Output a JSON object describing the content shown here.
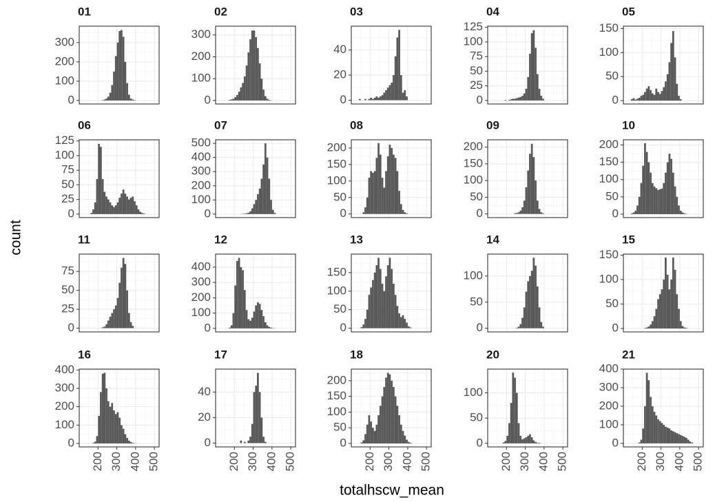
{
  "xlabel": "totalhscw_mean",
  "ylabel": "count",
  "xlim": [
    100,
    525
  ],
  "xticks": [
    200,
    300,
    400,
    500
  ],
  "chart_data": [
    {
      "type": "histogram",
      "title": "01",
      "ylim": [
        -18,
        385
      ],
      "yticks": [
        0,
        100,
        200,
        300
      ],
      "bins": [
        220,
        230,
        240,
        250,
        260,
        270,
        280,
        290,
        300,
        310,
        320,
        330,
        340,
        350,
        360,
        370,
        380,
        390,
        400
      ],
      "counts": [
        2,
        5,
        10,
        20,
        40,
        80,
        150,
        230,
        300,
        360,
        365,
        330,
        200,
        90,
        30,
        10,
        5,
        2
      ]
    },
    {
      "type": "histogram",
      "title": "02",
      "ylim": [
        -16,
        340
      ],
      "yticks": [
        0,
        100,
        200,
        300
      ],
      "bins": [
        170,
        180,
        190,
        200,
        210,
        220,
        230,
        240,
        250,
        260,
        270,
        280,
        290,
        300,
        310,
        320,
        330,
        340,
        350,
        360,
        370,
        380,
        390,
        400
      ],
      "counts": [
        3,
        5,
        8,
        15,
        25,
        40,
        60,
        80,
        110,
        160,
        220,
        280,
        320,
        320,
        290,
        240,
        170,
        100,
        50,
        20,
        8,
        3,
        1
      ]
    },
    {
      "type": "histogram",
      "title": "03",
      "ylim": [
        -3,
        59
      ],
      "yticks": [
        0,
        20,
        40
      ],
      "bins": [
        140,
        150,
        160,
        170,
        180,
        190,
        200,
        210,
        220,
        230,
        240,
        250,
        260,
        270,
        280,
        290,
        300,
        310,
        320,
        330,
        340,
        350,
        360,
        370,
        380,
        390,
        400
      ],
      "counts": [
        1,
        0,
        0,
        1,
        0,
        1,
        2,
        1,
        2,
        3,
        2,
        3,
        4,
        6,
        8,
        10,
        12,
        14,
        20,
        35,
        50,
        56,
        20,
        6,
        8,
        3
      ]
    },
    {
      "type": "histogram",
      "title": "04",
      "ylim": [
        -6,
        127
      ],
      "yticks": [
        0,
        25,
        50,
        75,
        100,
        125
      ],
      "bins": [
        190,
        200,
        210,
        220,
        230,
        240,
        250,
        260,
        270,
        280,
        290,
        300,
        310,
        320,
        330,
        340,
        350,
        360,
        370,
        380,
        390,
        400
      ],
      "counts": [
        1,
        0,
        1,
        2,
        3,
        3,
        4,
        5,
        6,
        8,
        12,
        20,
        40,
        80,
        115,
        120,
        90,
        45,
        20,
        8,
        3
      ]
    },
    {
      "type": "histogram",
      "title": "05",
      "ylim": [
        -7,
        155
      ],
      "yticks": [
        0,
        50,
        100,
        150
      ],
      "bins": [
        140,
        150,
        160,
        170,
        180,
        190,
        200,
        210,
        220,
        230,
        240,
        250,
        260,
        270,
        280,
        290,
        300,
        310,
        320,
        330,
        340,
        350,
        360,
        370,
        380,
        390,
        400,
        410
      ],
      "counts": [
        3,
        5,
        2,
        4,
        6,
        10,
        12,
        18,
        25,
        30,
        22,
        15,
        12,
        25,
        18,
        14,
        20,
        28,
        40,
        55,
        80,
        120,
        145,
        90,
        35,
        10,
        3
      ]
    },
    {
      "type": "histogram",
      "title": "06",
      "ylim": [
        -6,
        127
      ],
      "yticks": [
        0,
        25,
        50,
        75,
        100,
        125
      ],
      "bins": [
        160,
        170,
        180,
        190,
        200,
        210,
        220,
        230,
        240,
        250,
        260,
        270,
        280,
        290,
        300,
        310,
        320,
        330,
        340,
        350,
        360,
        370,
        380,
        390,
        400,
        410,
        420,
        430,
        440,
        450
      ],
      "counts": [
        2,
        8,
        20,
        60,
        120,
        115,
        60,
        38,
        30,
        25,
        20,
        15,
        12,
        15,
        20,
        28,
        35,
        42,
        35,
        30,
        25,
        28,
        30,
        22,
        15,
        8,
        4,
        2,
        1
      ]
    },
    {
      "type": "histogram",
      "title": "07",
      "ylim": [
        -25,
        525
      ],
      "yticks": [
        0,
        100,
        200,
        300,
        400,
        500
      ],
      "bins": [
        230,
        240,
        250,
        260,
        270,
        280,
        290,
        300,
        310,
        320,
        330,
        340,
        350,
        360,
        370,
        380,
        390,
        400,
        410,
        420
      ],
      "counts": [
        1,
        2,
        3,
        5,
        10,
        20,
        40,
        70,
        100,
        140,
        180,
        250,
        350,
        500,
        400,
        250,
        100,
        30,
        8
      ]
    },
    {
      "type": "histogram",
      "title": "08",
      "ylim": [
        -11,
        225
      ],
      "yticks": [
        0,
        50,
        100,
        150,
        200
      ],
      "bins": [
        160,
        170,
        180,
        190,
        200,
        210,
        220,
        230,
        240,
        250,
        260,
        270,
        280,
        290,
        300,
        310,
        320,
        330,
        340,
        350,
        360,
        370,
        380,
        390,
        400
      ],
      "counts": [
        5,
        20,
        50,
        110,
        130,
        125,
        130,
        170,
        215,
        180,
        110,
        80,
        130,
        175,
        210,
        200,
        180,
        170,
        130,
        70,
        30,
        12,
        5,
        2
      ]
    },
    {
      "type": "histogram",
      "title": "09",
      "ylim": [
        -11,
        222
      ],
      "yticks": [
        0,
        50,
        100,
        150,
        200
      ],
      "bins": [
        240,
        250,
        260,
        270,
        280,
        290,
        300,
        310,
        320,
        330,
        340,
        350,
        360,
        370,
        380,
        390,
        400
      ],
      "counts": [
        2,
        3,
        5,
        10,
        20,
        40,
        80,
        130,
        180,
        210,
        170,
        100,
        40,
        15,
        5,
        2
      ]
    },
    {
      "type": "histogram",
      "title": "10",
      "ylim": [
        -10,
        215
      ],
      "yticks": [
        0,
        50,
        100,
        150,
        200
      ],
      "bins": [
        140,
        150,
        160,
        170,
        180,
        190,
        200,
        210,
        220,
        230,
        240,
        250,
        260,
        270,
        280,
        290,
        300,
        310,
        320,
        330,
        340,
        350,
        360,
        370,
        380,
        390,
        400,
        410,
        420,
        430,
        440
      ],
      "counts": [
        2,
        5,
        10,
        25,
        50,
        90,
        140,
        205,
        180,
        150,
        120,
        90,
        80,
        75,
        70,
        72,
        74,
        90,
        120,
        150,
        175,
        160,
        120,
        80,
        50,
        25,
        10,
        5,
        2,
        1
      ]
    },
    {
      "type": "histogram",
      "title": "11",
      "ylim": [
        -5,
        98
      ],
      "yticks": [
        0,
        25,
        50,
        75
      ],
      "bins": [
        220,
        230,
        240,
        250,
        260,
        270,
        280,
        290,
        300,
        310,
        320,
        330,
        340,
        350,
        360,
        370,
        380,
        390
      ],
      "counts": [
        1,
        2,
        5,
        10,
        15,
        20,
        25,
        30,
        40,
        60,
        80,
        93,
        85,
        50,
        20,
        8,
        3
      ]
    },
    {
      "type": "histogram",
      "title": "12",
      "ylim": [
        -23,
        485
      ],
      "yticks": [
        0,
        100,
        200,
        300,
        400
      ],
      "bins": [
        170,
        180,
        190,
        200,
        210,
        220,
        230,
        240,
        250,
        260,
        270,
        280,
        290,
        300,
        310,
        320,
        330,
        340,
        350,
        360,
        370,
        380,
        390,
        400,
        410,
        420
      ],
      "counts": [
        5,
        20,
        100,
        280,
        440,
        460,
        400,
        380,
        250,
        120,
        60,
        50,
        70,
        110,
        150,
        170,
        160,
        120,
        80,
        40,
        20,
        10,
        5,
        2,
        1
      ]
    },
    {
      "type": "histogram",
      "title": "13",
      "ylim": [
        -10,
        200
      ],
      "yticks": [
        0,
        50,
        100,
        150
      ],
      "bins": [
        150,
        160,
        170,
        180,
        190,
        200,
        210,
        220,
        230,
        240,
        250,
        260,
        270,
        280,
        290,
        300,
        310,
        320,
        330,
        340,
        350,
        360,
        370,
        380,
        390,
        400,
        410,
        420
      ],
      "counts": [
        3,
        10,
        25,
        50,
        90,
        110,
        130,
        150,
        170,
        190,
        160,
        120,
        100,
        140,
        170,
        190,
        160,
        120,
        90,
        60,
        40,
        30,
        35,
        25,
        15,
        5,
        2
      ]
    },
    {
      "type": "histogram",
      "title": "14",
      "ylim": [
        -7,
        142
      ],
      "yticks": [
        0,
        50,
        100
      ],
      "bins": [
        250,
        260,
        270,
        280,
        290,
        300,
        310,
        320,
        330,
        340,
        350,
        360,
        370,
        380,
        390,
        400
      ],
      "counts": [
        1,
        3,
        8,
        20,
        40,
        70,
        90,
        100,
        110,
        135,
        120,
        80,
        40,
        12,
        3
      ]
    },
    {
      "type": "histogram",
      "title": "15",
      "ylim": [
        -7,
        152
      ],
      "yticks": [
        0,
        50,
        100,
        150
      ],
      "bins": [
        210,
        220,
        230,
        240,
        250,
        260,
        270,
        280,
        290,
        300,
        310,
        320,
        330,
        340,
        350,
        360,
        370,
        380,
        390,
        400,
        410,
        420,
        430,
        440
      ],
      "counts": [
        1,
        2,
        4,
        8,
        15,
        25,
        40,
        60,
        70,
        80,
        100,
        145,
        110,
        80,
        100,
        145,
        120,
        70,
        40,
        15,
        5,
        2,
        1
      ]
    },
    {
      "type": "histogram",
      "title": "16",
      "ylim": [
        -19,
        405
      ],
      "yticks": [
        0,
        100,
        200,
        300,
        400
      ],
      "bins": [
        170,
        180,
        190,
        200,
        210,
        220,
        230,
        240,
        250,
        260,
        270,
        280,
        290,
        300,
        310,
        320,
        330,
        340,
        350,
        360,
        370,
        380,
        390,
        400
      ],
      "counts": [
        3,
        10,
        40,
        150,
        280,
        380,
        385,
        300,
        230,
        200,
        220,
        180,
        160,
        170,
        140,
        100,
        80,
        50,
        30,
        15,
        8,
        3,
        1
      ]
    },
    {
      "type": "histogram",
      "title": "17",
      "ylim": [
        -3,
        58
      ],
      "yticks": [
        0,
        20,
        40
      ],
      "bins": [
        230,
        240,
        250,
        260,
        270,
        280,
        290,
        300,
        310,
        320,
        330,
        340,
        350,
        360,
        370
      ],
      "counts": [
        2,
        0,
        1,
        0,
        2,
        5,
        15,
        40,
        45,
        55,
        40,
        20,
        5,
        1
      ]
    },
    {
      "type": "histogram",
      "title": "18",
      "ylim": [
        -11,
        237
      ],
      "yticks": [
        0,
        50,
        100,
        150,
        200
      ],
      "bins": [
        150,
        160,
        170,
        180,
        190,
        200,
        210,
        220,
        230,
        240,
        250,
        260,
        270,
        280,
        290,
        300,
        310,
        320,
        330,
        340,
        350,
        360,
        370,
        380,
        390,
        400,
        410,
        420
      ],
      "counts": [
        3,
        10,
        30,
        60,
        90,
        70,
        50,
        40,
        60,
        90,
        120,
        150,
        180,
        210,
        225,
        220,
        200,
        180,
        150,
        120,
        90,
        60,
        40,
        25,
        12,
        5,
        2
      ]
    },
    {
      "type": "histogram",
      "title": "20",
      "ylim": [
        -7,
        147
      ],
      "yticks": [
        0,
        50,
        100
      ],
      "bins": [
        180,
        190,
        200,
        210,
        220,
        230,
        240,
        250,
        260,
        270,
        280,
        290,
        300,
        310,
        320,
        330,
        340,
        350,
        360,
        370,
        380
      ],
      "counts": [
        2,
        5,
        15,
        40,
        80,
        140,
        130,
        100,
        40,
        15,
        8,
        10,
        12,
        15,
        18,
        12,
        6,
        3,
        1,
        1
      ]
    },
    {
      "type": "histogram",
      "title": "21",
      "ylim": [
        -19,
        400
      ],
      "yticks": [
        0,
        100,
        200,
        300,
        400
      ],
      "bins": [
        180,
        190,
        200,
        210,
        220,
        230,
        240,
        250,
        260,
        270,
        280,
        290,
        300,
        310,
        320,
        330,
        340,
        350,
        360,
        370,
        380,
        390,
        400,
        410,
        420,
        430,
        440,
        450,
        460,
        470
      ],
      "counts": [
        5,
        20,
        80,
        200,
        380,
        340,
        250,
        200,
        170,
        150,
        130,
        120,
        110,
        100,
        90,
        85,
        80,
        70,
        65,
        60,
        55,
        50,
        45,
        40,
        35,
        30,
        20,
        10,
        5
      ]
    }
  ]
}
